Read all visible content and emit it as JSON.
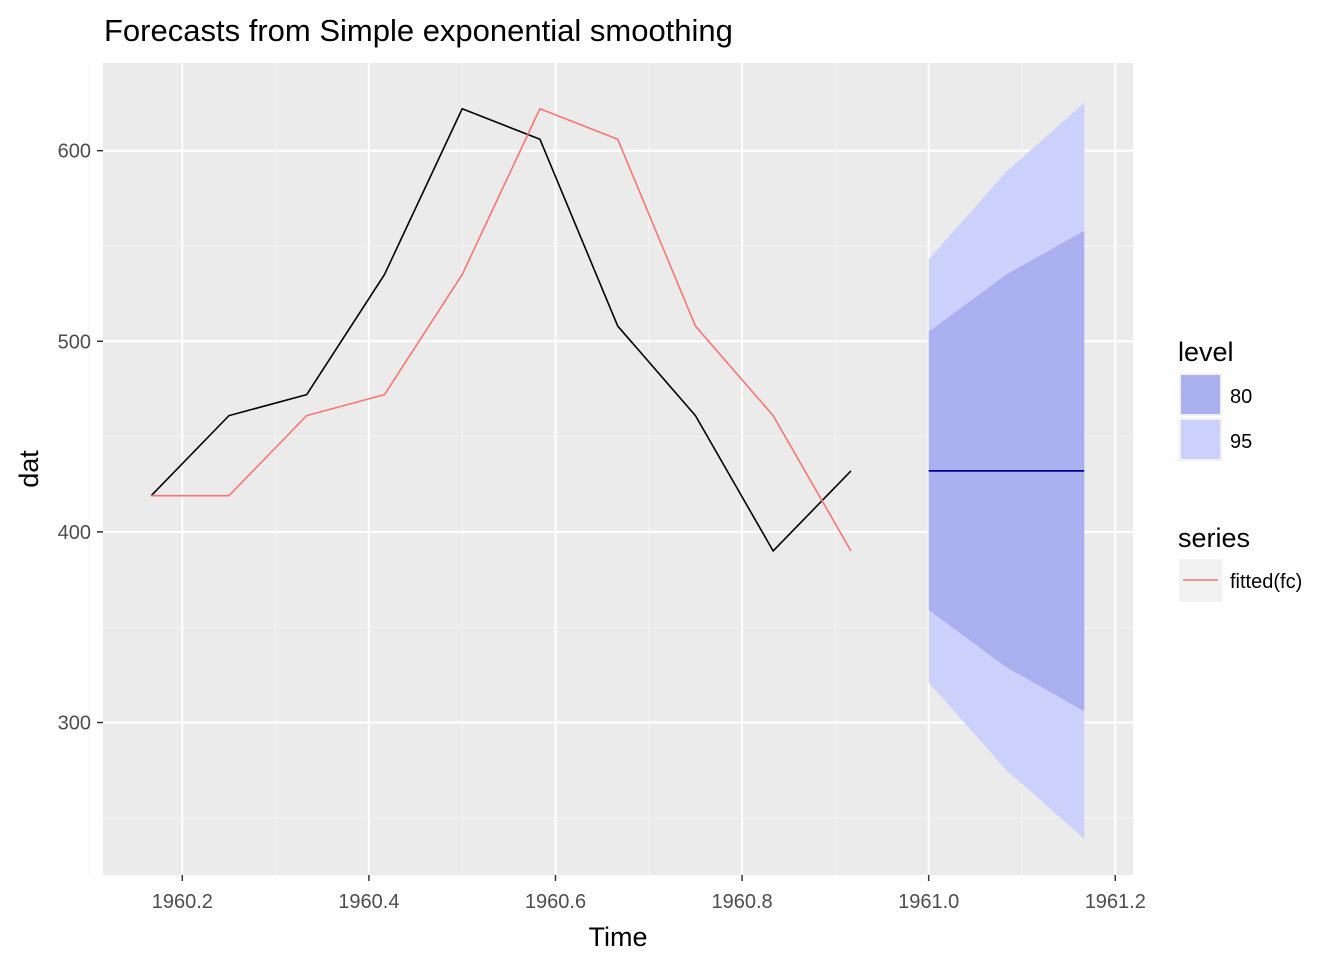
{
  "chart_data": {
    "type": "line",
    "title": "Forecasts from Simple exponential smoothing",
    "xlabel": "Time",
    "ylabel": "dat",
    "xlim": [
      1960.115,
      1961.219
    ],
    "ylim": [
      220,
      646
    ],
    "x_ticks": [
      1960.2,
      1960.4,
      1960.6,
      1960.8,
      1961.0,
      1961.2
    ],
    "x_tick_labels": [
      "1960.2",
      "1960.4",
      "1960.6",
      "1960.8",
      "1961.0",
      "1961.2"
    ],
    "y_ticks": [
      300,
      400,
      500,
      600
    ],
    "y_tick_labels": [
      "300",
      "400",
      "500",
      "600"
    ],
    "x_minor_ticks": [
      1960.1,
      1960.3,
      1960.5,
      1960.7,
      1960.9,
      1961.1
    ],
    "y_minor_ticks": [
      250,
      350,
      450,
      550
    ],
    "grid": true,
    "series": [
      {
        "key": "data",
        "color": "#000000",
        "x": [
          1960.1667,
          1960.25,
          1960.3333,
          1960.4167,
          1960.5,
          1960.5833,
          1960.6667,
          1960.75,
          1960.8333,
          1960.9167
        ],
        "values": [
          419,
          461,
          472,
          535,
          622,
          606,
          508,
          461,
          390,
          432
        ]
      },
      {
        "name": "fitted(fc)",
        "key": "fitted",
        "color": "#F8766D",
        "x": [
          1960.1667,
          1960.25,
          1960.3333,
          1960.4167,
          1960.5,
          1960.5833,
          1960.6667,
          1960.75,
          1960.8333,
          1960.9167
        ],
        "values": [
          419,
          419,
          461,
          472,
          535,
          622,
          606,
          508,
          461,
          390
        ]
      }
    ],
    "forecast": {
      "color": "#00008B",
      "x": [
        1961.0,
        1961.0833,
        1961.1667
      ],
      "mean": [
        432,
        432,
        432
      ],
      "lo80": [
        359,
        329,
        306
      ],
      "hi80": [
        505,
        535,
        558
      ],
      "lo95": [
        321,
        275,
        239
      ],
      "hi95": [
        543,
        589,
        625
      ],
      "color80": "#AAAFEF",
      "color95": "#CCD1FB"
    },
    "legend": {
      "placement": "right",
      "level": {
        "title": "level",
        "entries": [
          {
            "label": "80",
            "color": "#AAAFEF"
          },
          {
            "label": "95",
            "color": "#CCD1FB"
          }
        ]
      },
      "series": {
        "title": "series",
        "entries": [
          {
            "label": "fitted(fc)",
            "color": "#F8766D"
          }
        ]
      }
    },
    "colors": {
      "panel_bg": "#EBEBEB",
      "grid_major": "#FFFFFF",
      "grid_minor": "#F5F5F5",
      "tick_label": "#4D4D4D"
    }
  }
}
